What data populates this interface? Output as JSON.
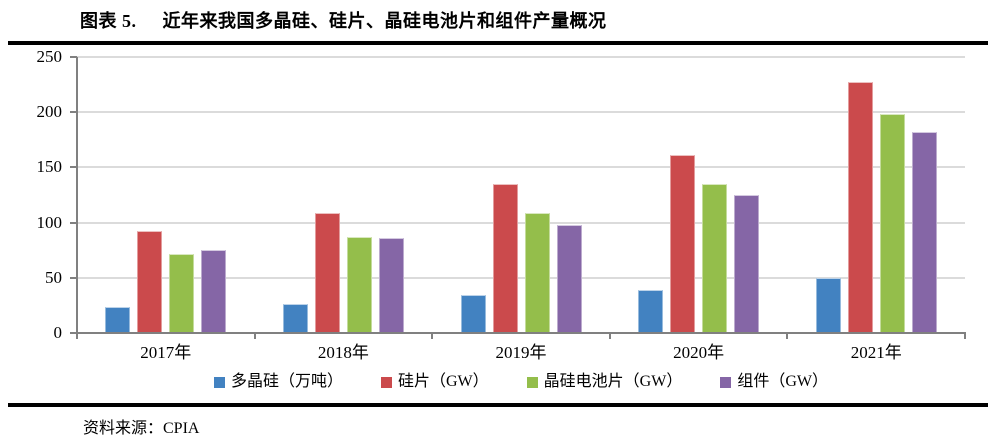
{
  "title": {
    "number": "图表 5.",
    "text": "近年来我国多晶硅、硅片、晶硅电池片和组件产量概况"
  },
  "footer": {
    "source_label": "资料来源：CPIA"
  },
  "chart_data": {
    "type": "bar",
    "categories": [
      "2017年",
      "2018年",
      "2019年",
      "2020年",
      "2021年"
    ],
    "series": [
      {
        "name": "多晶硅（万吨）",
        "color": "#4282C1",
        "values": [
          24,
          26,
          34,
          39,
          50
        ]
      },
      {
        "name": "硅片（GW）",
        "color": "#CB4A4C",
        "values": [
          92,
          109,
          135,
          161,
          227
        ]
      },
      {
        "name": "晶硅电池片（GW）",
        "color": "#94BE4B",
        "values": [
          72,
          87,
          109,
          135,
          198
        ]
      },
      {
        "name": "组件（GW）",
        "color": "#8566A6",
        "values": [
          75,
          86,
          98,
          125,
          182
        ]
      }
    ],
    "ylim": [
      0,
      250
    ],
    "yticks": [
      0,
      50,
      100,
      150,
      200,
      250
    ],
    "grid": true,
    "grid_color": "#DBDBDB",
    "axis_color": "#808080",
    "legend_position": "bottom"
  }
}
